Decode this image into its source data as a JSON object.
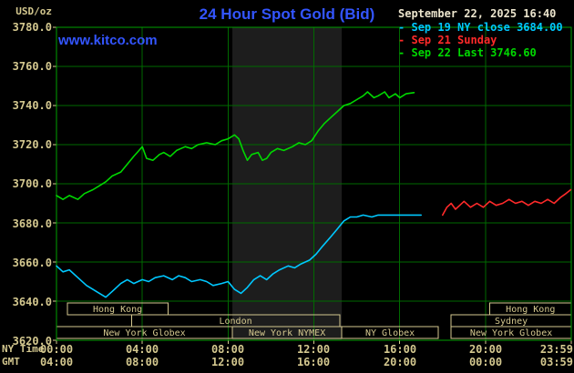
{
  "header": {
    "title": "24 Hour Spot Gold (Bid)",
    "site_link": "www.kitco.com",
    "datetime": "September 22, 2025 16:40",
    "unit_label": "USD/oz"
  },
  "legend": {
    "position": "top-right",
    "items": [
      {
        "dash": "-",
        "label": "Sep 19 NY close 3684.00",
        "color": "#00c8ff"
      },
      {
        "dash": "-",
        "label": "Sep 21 Sunday",
        "color": "#ff2a2a"
      },
      {
        "dash": "-",
        "label": "Sep 22 Last 3746.60",
        "color": "#00d800"
      }
    ]
  },
  "axes": {
    "ny_time_label": "NY Time",
    "gmt_label": "GMT",
    "ny_times": [
      "00:00",
      "04:00",
      "08:00",
      "12:00",
      "16:00",
      "20:00",
      "23:59"
    ],
    "gmt_times": [
      "04:00",
      "08:00",
      "12:00",
      "16:00",
      "20:00",
      "00:00",
      "03:59"
    ],
    "y_ticks": [
      "3780.0",
      "3760.0",
      "3740.0",
      "3720.0",
      "3700.0",
      "3680.0",
      "3660.0",
      "3640.0",
      "3620.0"
    ]
  },
  "chart_data": {
    "type": "line",
    "title": "24 Hour Spot Gold (Bid)",
    "ylabel": "USD/oz",
    "xlabel": "NY Time (hours 00:00 - 23:59)",
    "xlim": [
      0,
      24
    ],
    "ylim": [
      3620,
      3780
    ],
    "x_gridstep": 4,
    "y_gridstep": 20,
    "grid": true,
    "grid_color": "#006a00",
    "border_color": "#00a000",
    "tick_color": "#d4c88f",
    "band": {
      "name": "New York NYMEX session highlight",
      "start": 8.2,
      "end": 13.3,
      "color": "#1d1d1d"
    },
    "series": [
      {
        "name": "Sep 19 NY close",
        "color": "#00c8ff",
        "close_value": 3684.0,
        "points": [
          [
            0,
            3658
          ],
          [
            0.3,
            3655
          ],
          [
            0.6,
            3656
          ],
          [
            1,
            3652
          ],
          [
            1.4,
            3648
          ],
          [
            1.7,
            3646
          ],
          [
            2,
            3644
          ],
          [
            2.3,
            3642
          ],
          [
            2.6,
            3645
          ],
          [
            3,
            3649
          ],
          [
            3.3,
            3651
          ],
          [
            3.6,
            3649
          ],
          [
            4,
            3651
          ],
          [
            4.3,
            3650
          ],
          [
            4.6,
            3652
          ],
          [
            5,
            3653
          ],
          [
            5.4,
            3651
          ],
          [
            5.7,
            3653
          ],
          [
            6,
            3652
          ],
          [
            6.3,
            3650
          ],
          [
            6.7,
            3651
          ],
          [
            7,
            3650
          ],
          [
            7.3,
            3648
          ],
          [
            7.7,
            3649
          ],
          [
            8,
            3650
          ],
          [
            8.3,
            3646
          ],
          [
            8.6,
            3644
          ],
          [
            8.9,
            3647
          ],
          [
            9.2,
            3651
          ],
          [
            9.5,
            3653
          ],
          [
            9.8,
            3651
          ],
          [
            10.1,
            3654
          ],
          [
            10.4,
            3656
          ],
          [
            10.8,
            3658
          ],
          [
            11.1,
            3657
          ],
          [
            11.4,
            3659
          ],
          [
            11.8,
            3661
          ],
          [
            12.1,
            3664
          ],
          [
            12.4,
            3668
          ],
          [
            12.8,
            3673
          ],
          [
            13.1,
            3677
          ],
          [
            13.4,
            3681
          ],
          [
            13.7,
            3683
          ],
          [
            14,
            3683
          ],
          [
            14.3,
            3684
          ],
          [
            14.7,
            3683
          ],
          [
            15,
            3684
          ],
          [
            15.5,
            3684
          ],
          [
            16,
            3684
          ],
          [
            16.5,
            3684
          ],
          [
            17,
            3684
          ]
        ]
      },
      {
        "name": "Sep 21 Sunday",
        "color": "#ff2a2a",
        "points": [
          [
            18,
            3684
          ],
          [
            18.2,
            3688
          ],
          [
            18.4,
            3690
          ],
          [
            18.6,
            3687
          ],
          [
            18.8,
            3689
          ],
          [
            19,
            3691
          ],
          [
            19.3,
            3688
          ],
          [
            19.6,
            3690
          ],
          [
            19.9,
            3688
          ],
          [
            20.2,
            3691
          ],
          [
            20.5,
            3689
          ],
          [
            20.8,
            3690
          ],
          [
            21.1,
            3692
          ],
          [
            21.4,
            3690
          ],
          [
            21.7,
            3691
          ],
          [
            22,
            3689
          ],
          [
            22.3,
            3691
          ],
          [
            22.6,
            3690
          ],
          [
            22.9,
            3692
          ],
          [
            23.2,
            3690
          ],
          [
            23.5,
            3693
          ],
          [
            23.75,
            3695
          ],
          [
            23.98,
            3697
          ]
        ]
      },
      {
        "name": "Sep 22 Last",
        "color": "#00d800",
        "last_value": 3746.6,
        "points": [
          [
            0,
            3694
          ],
          [
            0.3,
            3692
          ],
          [
            0.6,
            3694
          ],
          [
            1,
            3692
          ],
          [
            1.3,
            3695
          ],
          [
            1.7,
            3697
          ],
          [
            2,
            3699
          ],
          [
            2.3,
            3701
          ],
          [
            2.6,
            3704
          ],
          [
            3,
            3706
          ],
          [
            3.3,
            3710
          ],
          [
            3.6,
            3714
          ],
          [
            3.85,
            3717
          ],
          [
            4,
            3719
          ],
          [
            4.2,
            3713
          ],
          [
            4.5,
            3712
          ],
          [
            4.8,
            3715
          ],
          [
            5,
            3716
          ],
          [
            5.3,
            3714
          ],
          [
            5.6,
            3717
          ],
          [
            6,
            3719
          ],
          [
            6.3,
            3718
          ],
          [
            6.6,
            3720
          ],
          [
            7,
            3721
          ],
          [
            7.4,
            3720
          ],
          [
            7.7,
            3722
          ],
          [
            8,
            3723
          ],
          [
            8.3,
            3725
          ],
          [
            8.5,
            3723
          ],
          [
            8.7,
            3717
          ],
          [
            8.9,
            3712
          ],
          [
            9.1,
            3715
          ],
          [
            9.4,
            3716
          ],
          [
            9.6,
            3712
          ],
          [
            9.8,
            3713
          ],
          [
            10,
            3716
          ],
          [
            10.3,
            3718
          ],
          [
            10.6,
            3717
          ],
          [
            11,
            3719
          ],
          [
            11.3,
            3721
          ],
          [
            11.6,
            3720
          ],
          [
            11.9,
            3722
          ],
          [
            12.2,
            3727
          ],
          [
            12.5,
            3731
          ],
          [
            12.8,
            3734
          ],
          [
            13.1,
            3737
          ],
          [
            13.4,
            3740
          ],
          [
            13.7,
            3741
          ],
          [
            14,
            3743
          ],
          [
            14.3,
            3745
          ],
          [
            14.5,
            3747
          ],
          [
            14.8,
            3744
          ],
          [
            15,
            3745
          ],
          [
            15.3,
            3747
          ],
          [
            15.5,
            3744
          ],
          [
            15.8,
            3746
          ],
          [
            16,
            3744
          ],
          [
            16.3,
            3746
          ],
          [
            16.67,
            3746.6
          ]
        ]
      }
    ],
    "sessions": {
      "color": "#d4c88f",
      "rows": [
        [
          {
            "label": "Hong Kong",
            "start": 0.5,
            "end": 5.2
          },
          {
            "label": "Hong Kong",
            "start": 20.2,
            "end": 24
          }
        ],
        [
          {
            "label": "London",
            "start": 3.5,
            "end": 13.2
          },
          {
            "label": "Sydney",
            "start": 18.4,
            "end": 24
          }
        ],
        [
          {
            "label": "New York Globex",
            "start": 0,
            "end": 8.2
          },
          {
            "label": "New York NYMEX",
            "start": 8.2,
            "end": 13.3
          },
          {
            "label": "NY Globex",
            "start": 13.3,
            "end": 17.8
          },
          {
            "label": "New York Globex",
            "start": 18.4,
            "end": 24
          }
        ]
      ]
    }
  }
}
